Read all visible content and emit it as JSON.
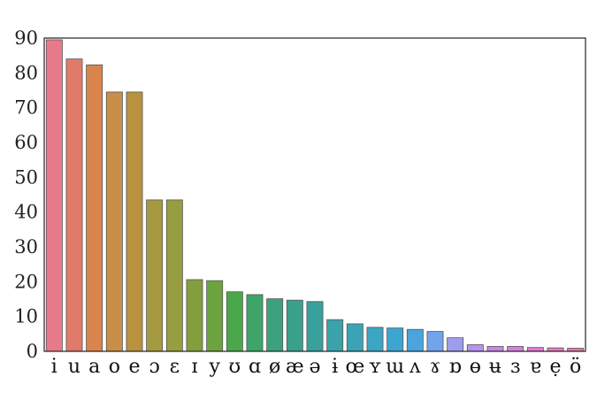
{
  "chart_data": {
    "type": "bar",
    "title": "",
    "xlabel": "",
    "ylabel": "",
    "ylim": [
      0,
      90
    ],
    "yticks": [
      0,
      10,
      20,
      30,
      40,
      50,
      60,
      70,
      80,
      90
    ],
    "grid": false,
    "legend": "none",
    "categories": [
      "i",
      "u",
      "a",
      "o",
      "e",
      "ɔ",
      "ɛ",
      "ɪ",
      "y",
      "ʊ",
      "ɑ",
      "ø",
      "æ",
      "ə",
      "ɨ",
      "œ",
      "ʏ",
      "ɯ",
      "ʌ",
      "ɤ",
      "ɒ",
      "ɵ",
      "ʉ",
      "ɜ",
      "ɐ",
      "ẹ",
      "ö"
    ],
    "values": [
      89.5,
      84,
      82.3,
      74.5,
      74.5,
      43.5,
      43.5,
      20.6,
      20.3,
      17.1,
      16.3,
      15.1,
      14.7,
      14.3,
      9.1,
      7.9,
      6.9,
      6.7,
      6.3,
      5.7,
      3.9,
      1.9,
      1.4,
      1.4,
      1.1,
      1.0,
      0.9
    ],
    "colors": [
      "#e8798b",
      "#e17a69",
      "#d9844d",
      "#c98e47",
      "#b9923f",
      "#a69a40",
      "#979e3f",
      "#839e3d",
      "#6da33f",
      "#4aa84b",
      "#3ea56a",
      "#3ba27d",
      "#3aa08c",
      "#3aa09b",
      "#3aa3a9",
      "#3aa4b6",
      "#3ba6c3",
      "#3da6d0",
      "#4aa4dd",
      "#73a3ea",
      "#9e9ded",
      "#b892ec",
      "#ca86e5",
      "#d77edd",
      "#e27ad1",
      "#e77ac1",
      "#e879ae"
    ]
  }
}
